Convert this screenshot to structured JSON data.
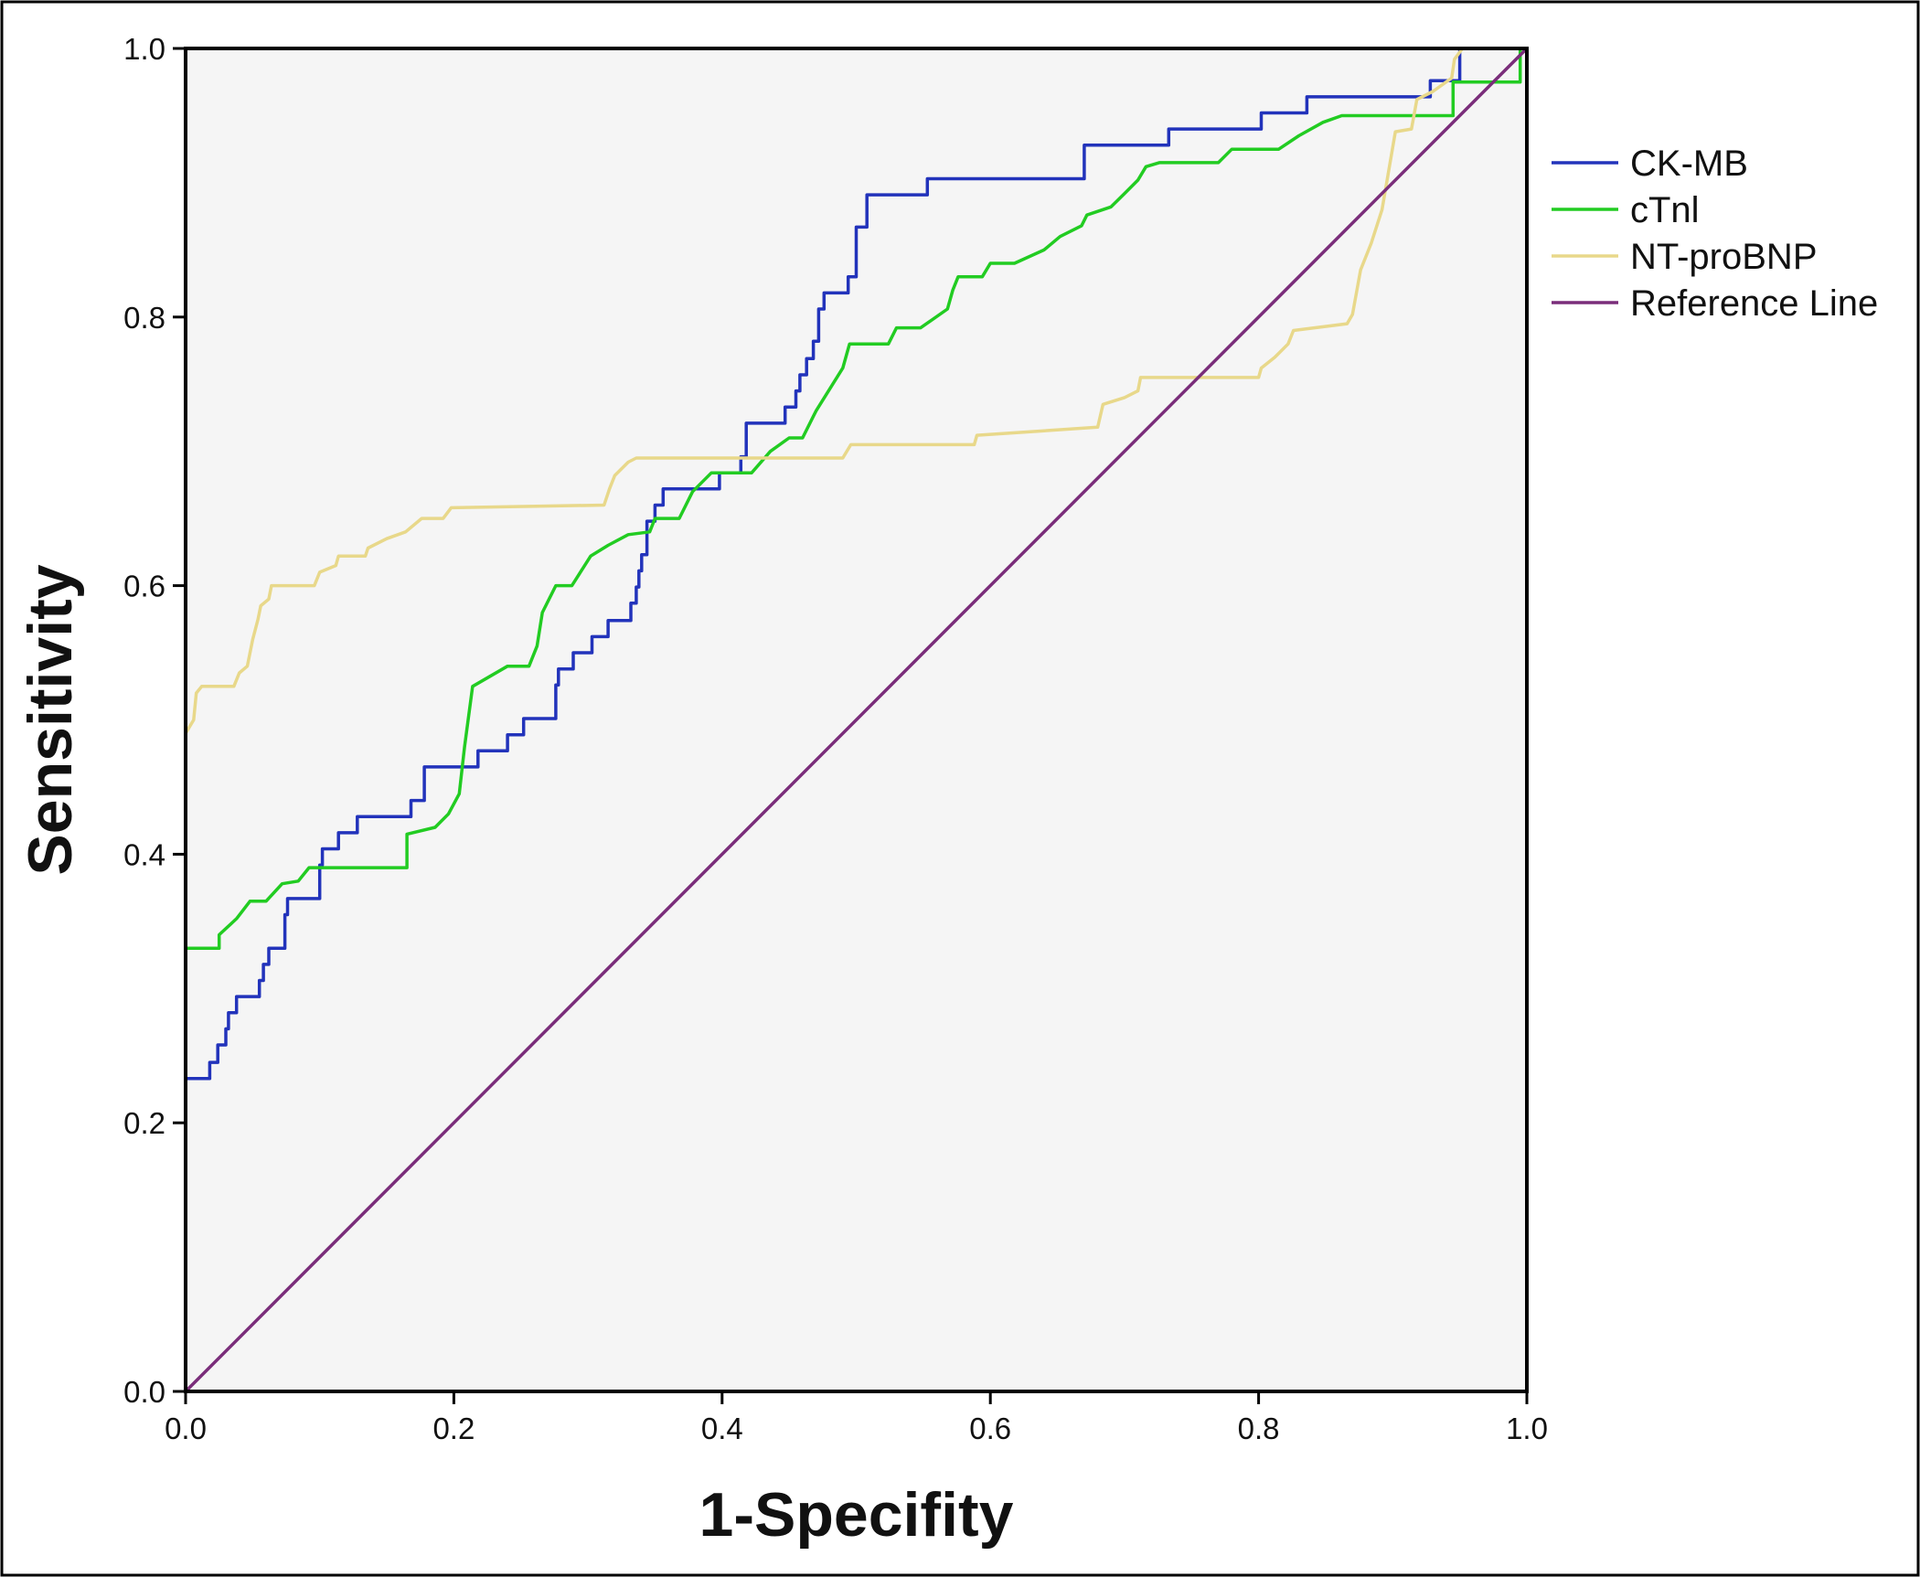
{
  "chart_data": {
    "type": "line",
    "title": "",
    "xlabel": "1-Specifity",
    "ylabel": "Sensitivity",
    "xlim": [
      0,
      1
    ],
    "ylim": [
      0,
      1
    ],
    "x_ticks": [
      "0.0",
      "0.2",
      "0.4",
      "0.6",
      "0.8",
      "1.0"
    ],
    "y_ticks": [
      "0.0",
      "0.2",
      "0.4",
      "0.6",
      "0.8",
      "1.0"
    ],
    "grid": false,
    "legend_position": "right",
    "plot_background": "#f5f5f5",
    "series": [
      {
        "name": "CK-MB",
        "color": "#2233bb",
        "points": [
          [
            0,
            0
          ],
          [
            0,
            0.233
          ],
          [
            0.018,
            0.233
          ],
          [
            0.018,
            0.245
          ],
          [
            0.024,
            0.245
          ],
          [
            0.024,
            0.258
          ],
          [
            0.03,
            0.258
          ],
          [
            0.03,
            0.27
          ],
          [
            0.032,
            0.27
          ],
          [
            0.032,
            0.282
          ],
          [
            0.038,
            0.282
          ],
          [
            0.038,
            0.294
          ],
          [
            0.055,
            0.294
          ],
          [
            0.055,
            0.306
          ],
          [
            0.058,
            0.306
          ],
          [
            0.058,
            0.318
          ],
          [
            0.062,
            0.318
          ],
          [
            0.062,
            0.33
          ],
          [
            0.074,
            0.33
          ],
          [
            0.074,
            0.355
          ],
          [
            0.076,
            0.355
          ],
          [
            0.076,
            0.367
          ],
          [
            0.1,
            0.367
          ],
          [
            0.1,
            0.392
          ],
          [
            0.102,
            0.392
          ],
          [
            0.102,
            0.404
          ],
          [
            0.114,
            0.404
          ],
          [
            0.114,
            0.416
          ],
          [
            0.128,
            0.416
          ],
          [
            0.128,
            0.428
          ],
          [
            0.168,
            0.428
          ],
          [
            0.168,
            0.44
          ],
          [
            0.178,
            0.44
          ],
          [
            0.178,
            0.465
          ],
          [
            0.218,
            0.465
          ],
          [
            0.218,
            0.477
          ],
          [
            0.24,
            0.477
          ],
          [
            0.24,
            0.489
          ],
          [
            0.252,
            0.489
          ],
          [
            0.252,
            0.501
          ],
          [
            0.276,
            0.501
          ],
          [
            0.276,
            0.526
          ],
          [
            0.278,
            0.526
          ],
          [
            0.278,
            0.538
          ],
          [
            0.289,
            0.538
          ],
          [
            0.289,
            0.55
          ],
          [
            0.303,
            0.55
          ],
          [
            0.303,
            0.562
          ],
          [
            0.315,
            0.562
          ],
          [
            0.315,
            0.574
          ],
          [
            0.332,
            0.574
          ],
          [
            0.332,
            0.587
          ],
          [
            0.336,
            0.587
          ],
          [
            0.336,
            0.599
          ],
          [
            0.338,
            0.599
          ],
          [
            0.338,
            0.611
          ],
          [
            0.34,
            0.611
          ],
          [
            0.34,
            0.623
          ],
          [
            0.344,
            0.623
          ],
          [
            0.344,
            0.648
          ],
          [
            0.35,
            0.648
          ],
          [
            0.35,
            0.66
          ],
          [
            0.356,
            0.66
          ],
          [
            0.356,
            0.672
          ],
          [
            0.398,
            0.672
          ],
          [
            0.398,
            0.684
          ],
          [
            0.414,
            0.684
          ],
          [
            0.414,
            0.696
          ],
          [
            0.418,
            0.696
          ],
          [
            0.418,
            0.721
          ],
          [
            0.447,
            0.721
          ],
          [
            0.447,
            0.733
          ],
          [
            0.455,
            0.733
          ],
          [
            0.455,
            0.745
          ],
          [
            0.458,
            0.745
          ],
          [
            0.458,
            0.757
          ],
          [
            0.463,
            0.757
          ],
          [
            0.463,
            0.769
          ],
          [
            0.468,
            0.769
          ],
          [
            0.468,
            0.782
          ],
          [
            0.472,
            0.782
          ],
          [
            0.472,
            0.806
          ],
          [
            0.476,
            0.806
          ],
          [
            0.476,
            0.818
          ],
          [
            0.494,
            0.818
          ],
          [
            0.494,
            0.83
          ],
          [
            0.5,
            0.83
          ],
          [
            0.5,
            0.867
          ],
          [
            0.508,
            0.867
          ],
          [
            0.508,
            0.891
          ],
          [
            0.553,
            0.891
          ],
          [
            0.553,
            0.903
          ],
          [
            0.67,
            0.903
          ],
          [
            0.67,
            0.928
          ],
          [
            0.733,
            0.928
          ],
          [
            0.733,
            0.94
          ],
          [
            0.802,
            0.94
          ],
          [
            0.802,
            0.952
          ],
          [
            0.836,
            0.952
          ],
          [
            0.836,
            0.964
          ],
          [
            0.928,
            0.964
          ],
          [
            0.928,
            0.976
          ],
          [
            0.95,
            0.976
          ],
          [
            0.95,
            1.0
          ],
          [
            1.0,
            1.0
          ]
        ]
      },
      {
        "name": "cTnl",
        "color": "#22cc22",
        "points": [
          [
            0,
            0
          ],
          [
            0,
            0.33
          ],
          [
            0.025,
            0.33
          ],
          [
            0.025,
            0.34
          ],
          [
            0.038,
            0.352
          ],
          [
            0.048,
            0.365
          ],
          [
            0.06,
            0.365
          ],
          [
            0.072,
            0.378
          ],
          [
            0.084,
            0.38
          ],
          [
            0.092,
            0.39
          ],
          [
            0.165,
            0.39
          ],
          [
            0.165,
            0.415
          ],
          [
            0.186,
            0.42
          ],
          [
            0.196,
            0.43
          ],
          [
            0.204,
            0.445
          ],
          [
            0.208,
            0.48
          ],
          [
            0.214,
            0.525
          ],
          [
            0.24,
            0.54
          ],
          [
            0.256,
            0.54
          ],
          [
            0.262,
            0.555
          ],
          [
            0.266,
            0.58
          ],
          [
            0.276,
            0.6
          ],
          [
            0.288,
            0.6
          ],
          [
            0.302,
            0.622
          ],
          [
            0.315,
            0.63
          ],
          [
            0.33,
            0.638
          ],
          [
            0.346,
            0.64
          ],
          [
            0.35,
            0.65
          ],
          [
            0.368,
            0.65
          ],
          [
            0.378,
            0.67
          ],
          [
            0.392,
            0.684
          ],
          [
            0.422,
            0.684
          ],
          [
            0.436,
            0.7
          ],
          [
            0.45,
            0.71
          ],
          [
            0.46,
            0.71
          ],
          [
            0.47,
            0.73
          ],
          [
            0.49,
            0.762
          ],
          [
            0.495,
            0.78
          ],
          [
            0.524,
            0.78
          ],
          [
            0.53,
            0.792
          ],
          [
            0.548,
            0.792
          ],
          [
            0.568,
            0.806
          ],
          [
            0.572,
            0.82
          ],
          [
            0.576,
            0.83
          ],
          [
            0.594,
            0.83
          ],
          [
            0.6,
            0.84
          ],
          [
            0.618,
            0.84
          ],
          [
            0.64,
            0.85
          ],
          [
            0.652,
            0.86
          ],
          [
            0.668,
            0.868
          ],
          [
            0.672,
            0.876
          ],
          [
            0.69,
            0.882
          ],
          [
            0.7,
            0.892
          ],
          [
            0.71,
            0.902
          ],
          [
            0.716,
            0.912
          ],
          [
            0.726,
            0.915
          ],
          [
            0.77,
            0.915
          ],
          [
            0.78,
            0.925
          ],
          [
            0.815,
            0.925
          ],
          [
            0.83,
            0.935
          ],
          [
            0.848,
            0.945
          ],
          [
            0.862,
            0.95
          ],
          [
            0.945,
            0.95
          ],
          [
            0.945,
            0.975
          ],
          [
            0.995,
            0.975
          ],
          [
            0.995,
            1.0
          ],
          [
            1.0,
            1.0
          ]
        ]
      },
      {
        "name": "NT-proBNP",
        "color": "#e8d88a",
        "points": [
          [
            0,
            0
          ],
          [
            0,
            0.49
          ],
          [
            0.006,
            0.5
          ],
          [
            0.008,
            0.52
          ],
          [
            0.012,
            0.525
          ],
          [
            0.036,
            0.525
          ],
          [
            0.04,
            0.535
          ],
          [
            0.046,
            0.54
          ],
          [
            0.05,
            0.56
          ],
          [
            0.054,
            0.575
          ],
          [
            0.056,
            0.585
          ],
          [
            0.062,
            0.59
          ],
          [
            0.064,
            0.6
          ],
          [
            0.096,
            0.6
          ],
          [
            0.1,
            0.61
          ],
          [
            0.112,
            0.615
          ],
          [
            0.114,
            0.622
          ],
          [
            0.134,
            0.622
          ],
          [
            0.136,
            0.628
          ],
          [
            0.15,
            0.635
          ],
          [
            0.164,
            0.64
          ],
          [
            0.176,
            0.65
          ],
          [
            0.192,
            0.65
          ],
          [
            0.198,
            0.658
          ],
          [
            0.312,
            0.66
          ],
          [
            0.316,
            0.672
          ],
          [
            0.32,
            0.682
          ],
          [
            0.33,
            0.692
          ],
          [
            0.336,
            0.695
          ],
          [
            0.49,
            0.695
          ],
          [
            0.496,
            0.705
          ],
          [
            0.588,
            0.705
          ],
          [
            0.59,
            0.712
          ],
          [
            0.68,
            0.718
          ],
          [
            0.684,
            0.735
          ],
          [
            0.7,
            0.74
          ],
          [
            0.71,
            0.745
          ],
          [
            0.712,
            0.755
          ],
          [
            0.8,
            0.755
          ],
          [
            0.802,
            0.762
          ],
          [
            0.812,
            0.77
          ],
          [
            0.822,
            0.78
          ],
          [
            0.826,
            0.79
          ],
          [
            0.866,
            0.795
          ],
          [
            0.87,
            0.802
          ],
          [
            0.876,
            0.835
          ],
          [
            0.884,
            0.855
          ],
          [
            0.892,
            0.88
          ],
          [
            0.902,
            0.938
          ],
          [
            0.914,
            0.94
          ],
          [
            0.918,
            0.962
          ],
          [
            0.93,
            0.968
          ],
          [
            0.944,
            0.978
          ],
          [
            0.946,
            0.992
          ],
          [
            0.952,
            1.0
          ],
          [
            1.0,
            1.0
          ]
        ]
      },
      {
        "name": "Reference Line",
        "color": "#7a2d7a",
        "points": [
          [
            0,
            0
          ],
          [
            1,
            1
          ]
        ]
      }
    ]
  }
}
